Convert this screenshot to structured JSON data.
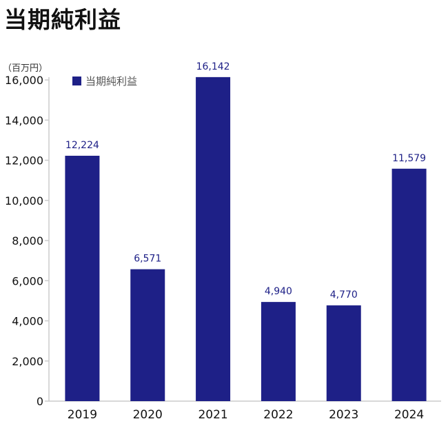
{
  "page": {
    "title": "当期純利益"
  },
  "chart_data": {
    "type": "bar",
    "unit": "（百万円）",
    "categories": [
      "2019",
      "2020",
      "2021",
      "2022",
      "2023",
      "2024"
    ],
    "series": [
      {
        "name": "当期純利益",
        "values": [
          12224,
          6571,
          16142,
          4940,
          4770,
          11579
        ]
      }
    ],
    "data_labels": [
      "12,224",
      "6,571",
      "16,142",
      "4,940",
      "4,770",
      "11,579"
    ],
    "ylim": [
      0,
      16000
    ],
    "yticks": [
      0,
      2000,
      4000,
      6000,
      8000,
      10000,
      12000,
      14000,
      16000
    ],
    "ytick_labels": [
      "0",
      "2,000",
      "4,000",
      "6,000",
      "8,000",
      "10,000",
      "12,000",
      "14,000",
      "16,000"
    ],
    "legend": "top-left",
    "grid": false,
    "colors": {
      "bar": "#1e2087",
      "axis": "#cccccc",
      "label": "#1e2087"
    }
  }
}
